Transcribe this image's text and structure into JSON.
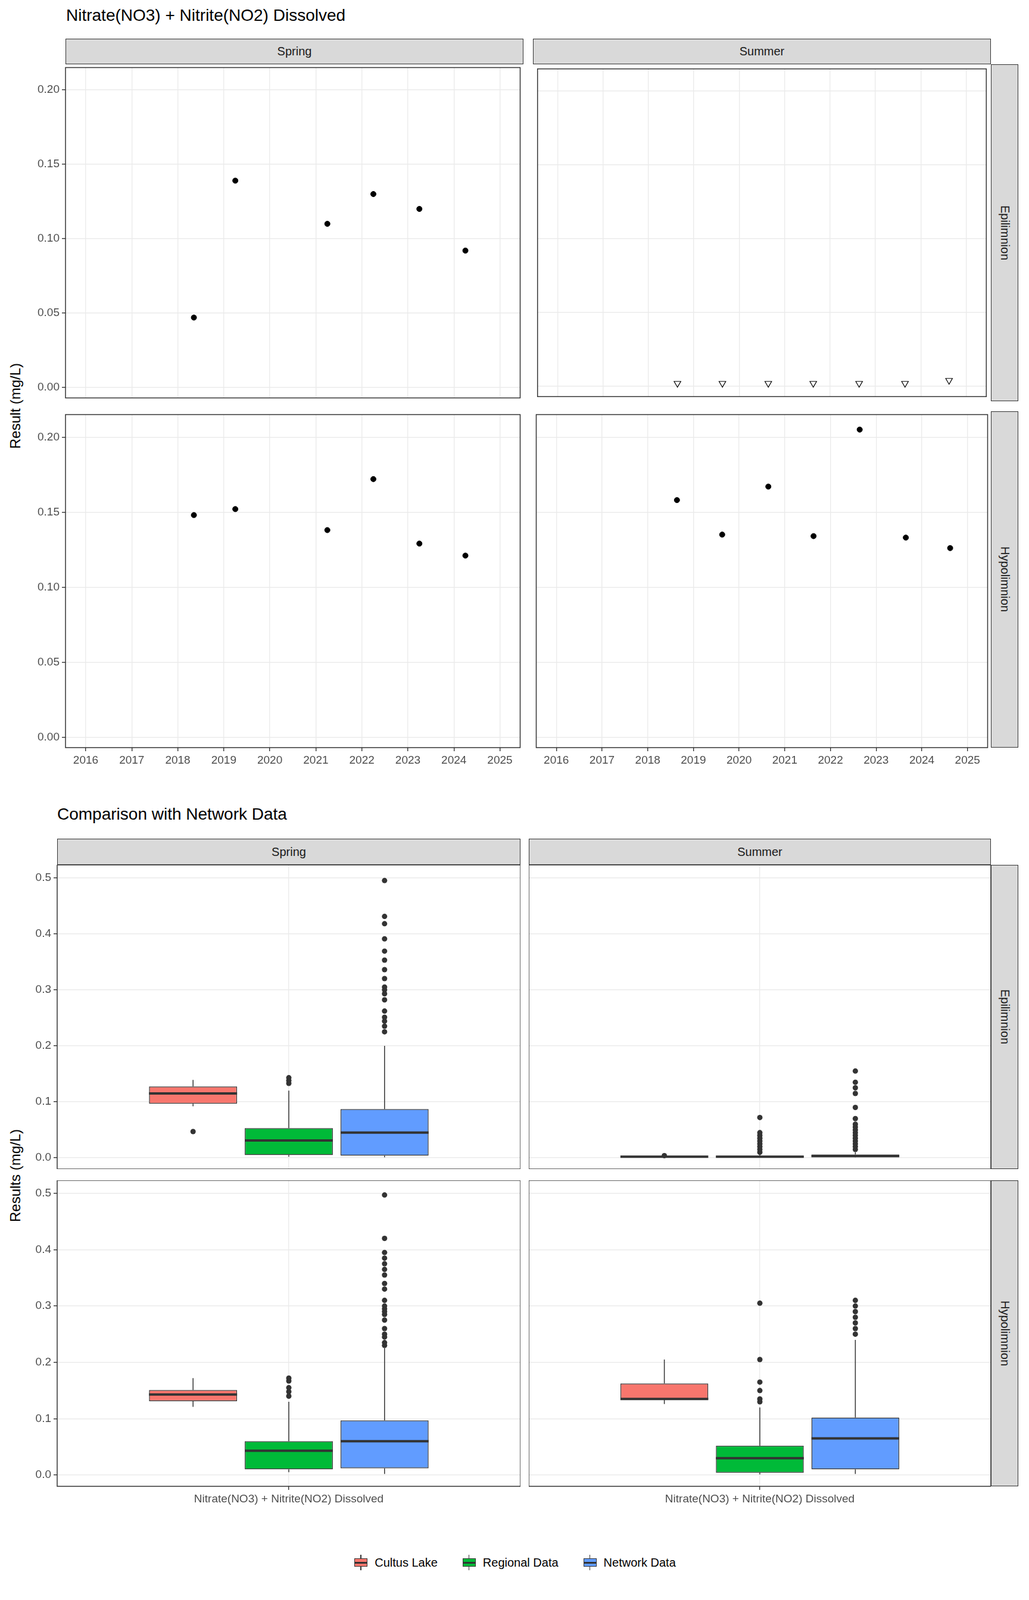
{
  "chart_data": [
    {
      "type": "scatter",
      "title": "Nitrate(NO3) + Nitrite(NO2) Dissolved",
      "ylabel": "Result (mg/L)",
      "facet_columns": [
        "Spring",
        "Summer"
      ],
      "facet_rows": [
        "Epilimnion",
        "Hypolimnion"
      ],
      "grid": true,
      "xlim": [
        2015.56,
        2025.44
      ],
      "xticks": [
        2016,
        2017,
        2018,
        2019,
        2020,
        2021,
        2022,
        2023,
        2024,
        2025
      ],
      "ylim": [
        -0.007,
        0.215
      ],
      "yticks": [
        {
          "value": 0,
          "label": "0.00"
        },
        0.05,
        {
          "value": 0.1,
          "label": "0.10"
        },
        0.15,
        {
          "value": 0.2,
          "label": "0.20"
        }
      ],
      "panels": [
        [
          {
            "tick_labels": "y",
            "marker": "circle",
            "color": "#000000",
            "x": [
              2018.35,
              2019.25,
              2021.25,
              2022.25,
              2023.25,
              2024.25
            ],
            "values": [
              0.047,
              0.139,
              0.11,
              0.13,
              0.12,
              0.092
            ]
          },
          {
            "tick_labels": false,
            "marker": "open_triangle_down",
            "color": "#000000",
            "x": [
              2018.64,
              2019.63,
              2020.64,
              2021.63,
              2022.64,
              2023.65,
              2024.62
            ],
            "values": [
              0.002,
              0.002,
              0.002,
              0.002,
              0.002,
              0.002,
              0.004
            ]
          }
        ],
        [
          {
            "marker": "circle",
            "color": "#000000",
            "x": [
              2018.35,
              2019.25,
              2021.25,
              2022.25,
              2023.25,
              2024.25
            ],
            "values": [
              0.148,
              0.152,
              0.138,
              0.172,
              0.129,
              0.121
            ]
          },
          {
            "tick_labels": "x",
            "marker": "circle",
            "color": "#000000",
            "x": [
              2018.64,
              2019.63,
              2020.64,
              2021.63,
              2022.64,
              2023.65,
              2024.62
            ],
            "values": [
              0.158,
              0.135,
              0.167,
              0.134,
              0.205,
              0.133,
              0.126
            ]
          }
        ]
      ]
    },
    {
      "type": "boxplot",
      "title": "Comparison with Network Data",
      "ylabel": "Results (mg/L)",
      "legend": "bottom",
      "grid": true,
      "facet_columns": [
        "Spring",
        "Summer"
      ],
      "facet_rows": [
        "Epilimnion",
        "Hypolimnion"
      ],
      "categories": [
        "Nitrate(NO3) + Nitrite(NO2) Dissolved"
      ],
      "ylim": [
        -0.02,
        0.523
      ],
      "yticks": [
        {
          "value": 0,
          "label": "0.0"
        },
        0.1,
        0.2,
        0.3,
        0.4,
        0.5
      ],
      "panels": [
        [
          {
            "tick_labels": "y",
            "series": [
              {
                "name": "Cultus Lake",
                "color": "#F8766D",
                "low": 0.092,
                "q1": 0.0965,
                "median": 0.115,
                "q3": 0.1275,
                "high": 0.139,
                "outliers": [
                  0.047
                ]
              },
              {
                "name": "Regional Data",
                "color": "#00BA38",
                "low": 0.002,
                "q1": 0.005,
                "median": 0.031,
                "q3": 0.053,
                "high": 0.12,
                "outliers": [
                  0.133,
                  0.138,
                  0.143
                ]
              },
              {
                "name": "Network Data",
                "color": "#619CFF",
                "low": 0.001,
                "q1": 0.004,
                "median": 0.045,
                "q3": 0.087,
                "high": 0.2,
                "outliers": [
                  0.225,
                  0.235,
                  0.244,
                  0.251,
                  0.262,
                  0.282,
                  0.293,
                  0.3,
                  0.305,
                  0.32,
                  0.336,
                  0.353,
                  0.369,
                  0.391,
                  0.418,
                  0.431,
                  0.495
                ]
              }
            ]
          },
          {
            "tick_labels": false,
            "series": [
              {
                "name": "Cultus Lake",
                "color": "#F8766D",
                "low": 0.002,
                "q1": 0.002,
                "median": 0.002,
                "q3": 0.002,
                "high": 0.002,
                "outliers": [
                  0.004
                ]
              },
              {
                "name": "Regional Data",
                "color": "#00BA38",
                "low": 0.001,
                "q1": 0.001,
                "median": 0.002,
                "q3": 0.003,
                "high": 0.006,
                "outliers": [
                  0.01,
                  0.015,
                  0.02,
                  0.025,
                  0.03,
                  0.035,
                  0.04,
                  0.045,
                  0.072
                ]
              },
              {
                "name": "Network Data",
                "color": "#619CFF",
                "low": 0.001,
                "q1": 0.002,
                "median": 0.003,
                "q3": 0.006,
                "high": 0.01,
                "outliers": [
                  0.015,
                  0.02,
                  0.025,
                  0.03,
                  0.035,
                  0.04,
                  0.045,
                  0.05,
                  0.055,
                  0.06,
                  0.07,
                  0.09,
                  0.115,
                  0.125,
                  0.135,
                  0.155
                ]
              }
            ]
          }
        ],
        [
          {
            "series": [
              {
                "name": "Cultus Lake",
                "color": "#F8766D",
                "low": 0.121,
                "q1": 0.131,
                "median": 0.143,
                "q3": 0.151,
                "high": 0.172,
                "outliers": []
              },
              {
                "name": "Regional Data",
                "color": "#00BA38",
                "low": 0.005,
                "q1": 0.01,
                "median": 0.043,
                "q3": 0.06,
                "high": 0.13,
                "outliers": [
                  0.14,
                  0.148,
                  0.155,
                  0.167,
                  0.172
                ]
              },
              {
                "name": "Network Data",
                "color": "#619CFF",
                "low": 0.002,
                "q1": 0.012,
                "median": 0.06,
                "q3": 0.097,
                "high": 0.225,
                "outliers": [
                  0.23,
                  0.235,
                  0.245,
                  0.25,
                  0.26,
                  0.275,
                  0.285,
                  0.29,
                  0.295,
                  0.3,
                  0.31,
                  0.33,
                  0.34,
                  0.355,
                  0.365,
                  0.375,
                  0.385,
                  0.395,
                  0.42,
                  0.497
                ]
              }
            ]
          },
          {
            "tick_labels": "x",
            "series": [
              {
                "name": "Cultus Lake",
                "color": "#F8766D",
                "low": 0.126,
                "q1": 0.1335,
                "median": 0.135,
                "q3": 0.1625,
                "high": 0.205,
                "outliers": []
              },
              {
                "name": "Regional Data",
                "color": "#00BA38",
                "low": 0.001,
                "q1": 0.004,
                "median": 0.03,
                "q3": 0.052,
                "high": 0.12,
                "outliers": [
                  0.13,
                  0.135,
                  0.15,
                  0.165,
                  0.205,
                  0.305
                ]
              },
              {
                "name": "Network Data",
                "color": "#619CFF",
                "low": 0.002,
                "q1": 0.01,
                "median": 0.065,
                "q3": 0.102,
                "high": 0.24,
                "outliers": [
                  0.25,
                  0.26,
                  0.27,
                  0.28,
                  0.29,
                  0.3,
                  0.31
                ]
              }
            ]
          }
        ]
      ]
    }
  ]
}
